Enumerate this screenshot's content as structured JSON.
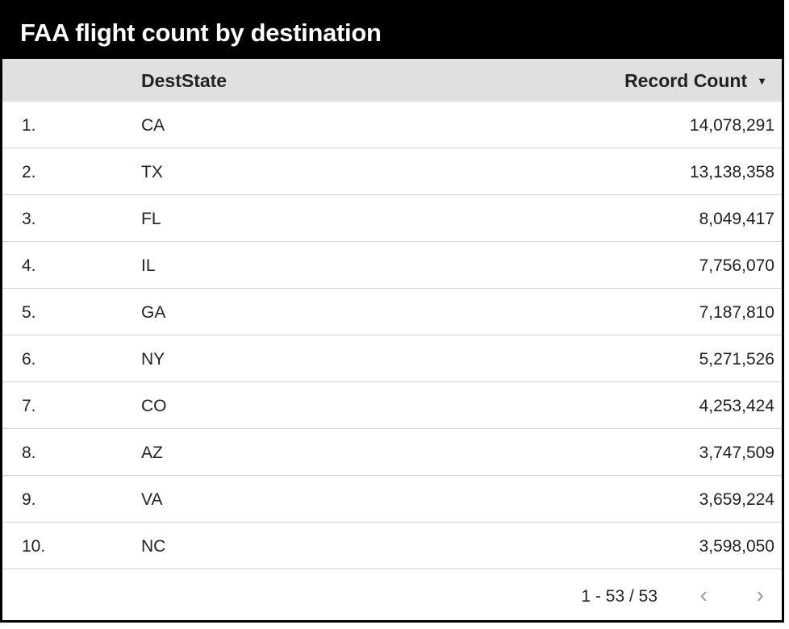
{
  "title": "FAA flight count by destination",
  "columns": {
    "dimension": "DestState",
    "metric": "Record Count",
    "sort_icon": "sort-descending-icon"
  },
  "rows": [
    {
      "index": "1.",
      "state": "CA",
      "count": "14,078,291"
    },
    {
      "index": "2.",
      "state": "TX",
      "count": "13,138,358"
    },
    {
      "index": "3.",
      "state": "FL",
      "count": "8,049,417"
    },
    {
      "index": "4.",
      "state": "IL",
      "count": "7,756,070"
    },
    {
      "index": "5.",
      "state": "GA",
      "count": "7,187,810"
    },
    {
      "index": "6.",
      "state": "NY",
      "count": "5,271,526"
    },
    {
      "index": "7.",
      "state": "CO",
      "count": "4,253,424"
    },
    {
      "index": "8.",
      "state": "AZ",
      "count": "3,747,509"
    },
    {
      "index": "9.",
      "state": "VA",
      "count": "3,659,224"
    },
    {
      "index": "10.",
      "state": "NC",
      "count": "3,598,050"
    }
  ],
  "pagination": {
    "text": "1 - 53 / 53",
    "prev_icon": "chevron-left-icon",
    "next_icon": "chevron-right-icon"
  }
}
